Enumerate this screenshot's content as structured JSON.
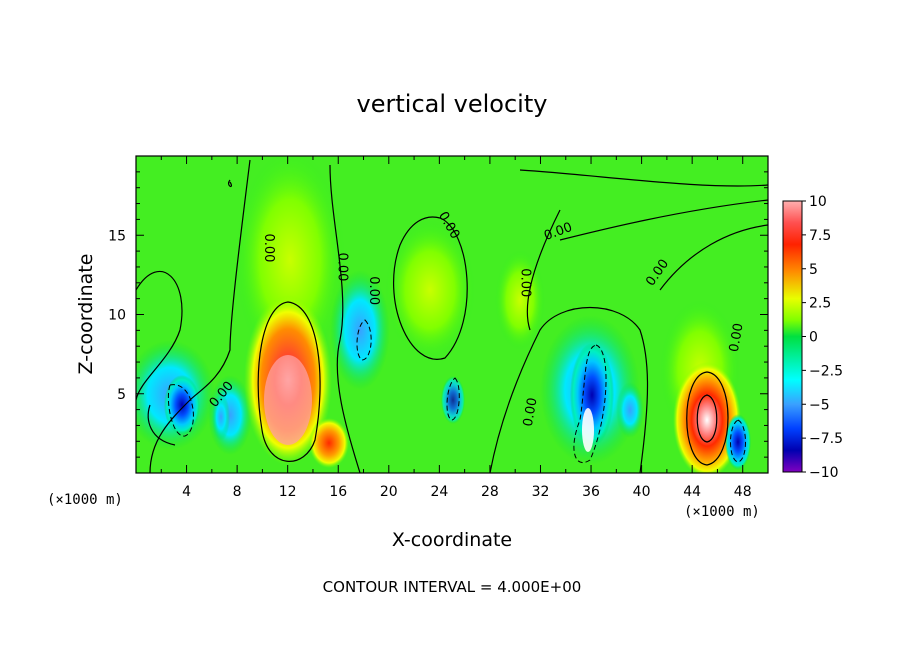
{
  "chart_data": {
    "type": "heatmap",
    "title": "vertical velocity",
    "xlabel": "X-coordinate",
    "ylabel": "Z-coordinate",
    "x_unit_note": "(×1000 m)",
    "x_unit_note_right": "(×1000 m)",
    "x_ticks": [
      "4",
      "8",
      "12",
      "16",
      "20",
      "24",
      "28",
      "32",
      "36",
      "40",
      "44",
      "48"
    ],
    "y_ticks": [
      "5",
      "10",
      "15"
    ],
    "xlim": [
      0,
      50
    ],
    "ylim": [
      0,
      20
    ],
    "colorbar": {
      "ticks": [
        "10",
        "7.5",
        "5",
        "2.5",
        "0",
        "−2.5",
        "−5",
        "−7.5",
        "−10"
      ],
      "range": [
        -10,
        10
      ],
      "colors": [
        "#ffffff",
        "#ff9090",
        "#ff2a00",
        "#ff8c00",
        "#f0ff00",
        "#7fff00",
        "#00e040",
        "#00f0a0",
        "#00ffff",
        "#40c0ff",
        "#0060ff",
        "#0000c0",
        "#8000c0"
      ]
    },
    "contour_labels": [
      "0.00",
      "0.00",
      "0.00",
      "0.00",
      "0.00",
      "0.00",
      "0.00",
      "0.00",
      "0.00",
      "0.00"
    ],
    "contour_interval_text": "CONTOUR INTERVAL = 4.000E+00",
    "features": [
      {
        "x": 12,
        "z": 6,
        "w": 10,
        "kind": "updraft"
      },
      {
        "x": 15,
        "z": 2,
        "w": 7.5,
        "kind": "updraft"
      },
      {
        "x": 45,
        "z": 3.5,
        "w": 10,
        "kind": "updraft"
      },
      {
        "x": 4,
        "z": 4.5,
        "w": -8,
        "kind": "downdraft"
      },
      {
        "x": 36,
        "z": 5,
        "w": -8,
        "kind": "downdraft"
      },
      {
        "x": 47.5,
        "z": 2,
        "w": -7,
        "kind": "downdraft"
      },
      {
        "x": 25,
        "z": 4.5,
        "w": -5,
        "kind": "downdraft"
      },
      {
        "x": 35.5,
        "z": 3,
        "w": 10,
        "kind": "updraft"
      }
    ]
  }
}
